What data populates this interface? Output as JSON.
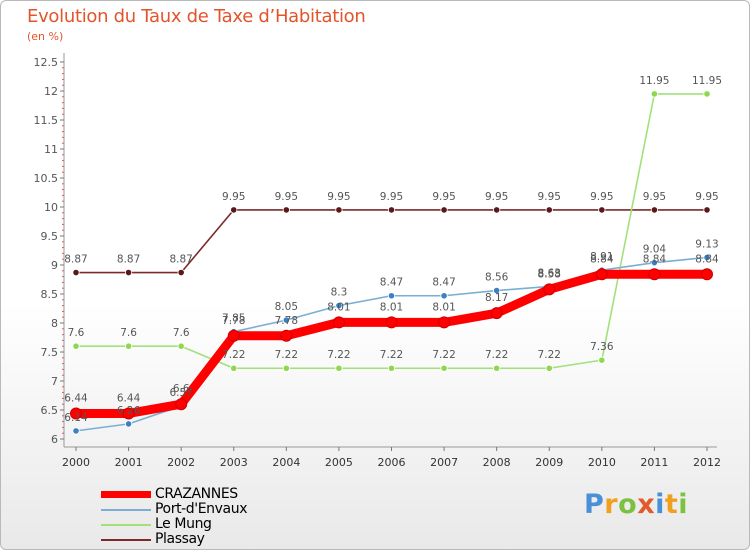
{
  "chart_data": {
    "type": "line",
    "title": "Evolution du Taux de Taxe d’Habitation",
    "subtitle": "(en %)",
    "ylim": [
      6,
      12.5
    ],
    "y_ticks": [
      "6",
      "6.5",
      "7",
      "7.5",
      "8",
      "8.5",
      "9",
      "9.5",
      "10",
      "10.5",
      "11",
      "11.5",
      "12",
      "12.5"
    ],
    "x": [
      "2000",
      "2001",
      "2002",
      "2003",
      "2004",
      "2005",
      "2006",
      "2007",
      "2008",
      "2009",
      "2010",
      "2011",
      "2012"
    ],
    "grid": false,
    "legend_position": "bottom-left",
    "series": [
      {
        "name": "CRAZANNES",
        "color": "#ff0000",
        "marker_color": "#ff0000",
        "values": [
          6.44,
          6.44,
          6.6,
          7.78,
          7.78,
          8.01,
          8.01,
          8.01,
          8.17,
          8.58,
          8.84,
          8.84,
          8.84
        ],
        "labels": [
          "6.44",
          "6.44",
          "6.6",
          "7.78",
          "7.78",
          "8.01",
          "8.01",
          "8.01",
          "8.17",
          "8.58",
          "8.84",
          "8.84",
          "8.84"
        ]
      },
      {
        "name": "Port-d'Envaux",
        "color": "#7aaed3",
        "marker_color": "#3a80c2",
        "values": [
          6.14,
          6.26,
          6.57,
          7.85,
          8.05,
          8.3,
          8.47,
          8.47,
          8.56,
          8.63,
          8.91,
          9.04,
          9.13
        ],
        "labels": [
          "6.14",
          "6.26",
          "6.57",
          "7.85",
          "8.05",
          "8.3",
          "8.47",
          "8.47",
          "8.56",
          "8.63",
          "8.91",
          "9.04",
          "9.13"
        ]
      },
      {
        "name": "Le Mung",
        "color": "#a2e07c",
        "marker_color": "#8ed84e",
        "values": [
          7.6,
          7.6,
          7.6,
          7.22,
          7.22,
          7.22,
          7.22,
          7.22,
          7.22,
          7.22,
          7.36,
          11.95,
          11.95
        ],
        "labels": [
          "7.6",
          "7.6",
          "7.6",
          "7.22",
          "7.22",
          "7.22",
          "7.22",
          "7.22",
          "7.22",
          "7.22",
          "7.36",
          "11.95",
          "11.95"
        ]
      },
      {
        "name": "Plassay",
        "color": "#7b2a2a",
        "marker_color": "#5a1818",
        "values": [
          8.87,
          8.87,
          8.87,
          9.95,
          9.95,
          9.95,
          9.95,
          9.95,
          9.95,
          9.95,
          9.95,
          9.95,
          9.95
        ],
        "labels": [
          "8.87",
          "8.87",
          "8.87",
          "9.95",
          "9.95",
          "9.95",
          "9.95",
          "9.95",
          "9.95",
          "9.95",
          "9.95",
          "9.95",
          "9.95"
        ]
      }
    ]
  },
  "logo": {
    "letters": [
      "P",
      "r",
      "o",
      "x",
      "i",
      "t",
      "i"
    ],
    "colors": [
      "#4a90d9",
      "#f0a020",
      "#7cc242",
      "#e25a2b",
      "#4a90d9",
      "#f0a020",
      "#7cc242"
    ]
  }
}
